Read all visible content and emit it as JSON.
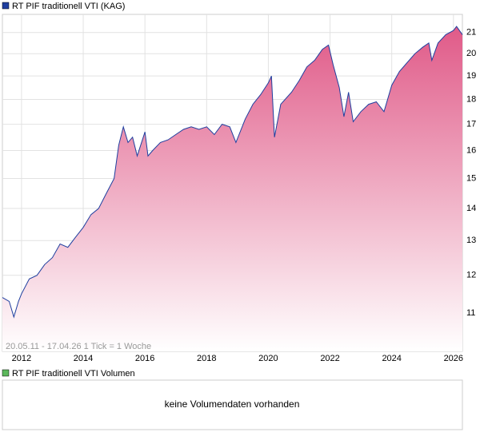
{
  "chart_data": {
    "type": "line",
    "legend": "RT PIF traditionell VTI (KAG)",
    "series": [
      {
        "name": "RT PIF traditionell VTI (KAG)",
        "color": "#1f3f9f",
        "fill": "#e05a88",
        "values": [
          11.4,
          11.3,
          10.9,
          11.3,
          11.5,
          11.9,
          12.0,
          12.3,
          12.5,
          12.9,
          12.8,
          13.1,
          13.4,
          13.8,
          14.0,
          14.5,
          15.0,
          16.2,
          16.9,
          16.3,
          16.5,
          15.8,
          16.7,
          15.8,
          16.0,
          16.3,
          16.4,
          16.6,
          16.8,
          16.9,
          16.8,
          16.9,
          16.6,
          17.0,
          16.9,
          16.3,
          17.2,
          17.8,
          18.2,
          18.7,
          19.0,
          16.5,
          17.8,
          18.3,
          18.8,
          19.4,
          19.7,
          20.2,
          20.4,
          19.5,
          18.5,
          17.3,
          18.3,
          17.1,
          17.5,
          17.8,
          17.9,
          17.5,
          18.6,
          19.2,
          19.6,
          20.0,
          20.3,
          20.5,
          19.7,
          20.5,
          20.9,
          21.1,
          21.3,
          20.9
        ]
      }
    ],
    "x": [
      2011.38,
      2011.6,
      2011.75,
      2011.9,
      2012.0,
      2012.25,
      2012.5,
      2012.75,
      2013.0,
      2013.25,
      2013.5,
      2013.75,
      2014.0,
      2014.25,
      2014.5,
      2014.75,
      2015.0,
      2015.15,
      2015.3,
      2015.45,
      2015.6,
      2015.75,
      2016.0,
      2016.1,
      2016.25,
      2016.5,
      2016.75,
      2017.0,
      2017.25,
      2017.5,
      2017.75,
      2018.0,
      2018.25,
      2018.5,
      2018.75,
      2018.95,
      2019.25,
      2019.5,
      2019.75,
      2020.0,
      2020.1,
      2020.2,
      2020.4,
      2020.75,
      2021.0,
      2021.25,
      2021.5,
      2021.75,
      2021.95,
      2022.1,
      2022.3,
      2022.45,
      2022.6,
      2022.75,
      2023.0,
      2023.25,
      2023.5,
      2023.75,
      2024.0,
      2024.25,
      2024.5,
      2024.75,
      2025.0,
      2025.2,
      2025.3,
      2025.5,
      2025.75,
      2026.0,
      2026.1,
      2026.29
    ],
    "xlim": [
      2011.38,
      2026.29
    ],
    "xticks": [
      2012,
      2014,
      2016,
      2018,
      2020,
      2022,
      2024,
      2026
    ],
    "ylim": [
      10.07,
      21.9
    ],
    "yticks": [
      11,
      12,
      13,
      14,
      15,
      16,
      17,
      18,
      19,
      20,
      21
    ],
    "log_scale": true,
    "grid": true,
    "footnote": "20.05.11 - 17.04.26   1 Tick = 1 Woche",
    "volume": {
      "legend": "RT PIF traditionell VTI Volumen",
      "legend_color": "#5cb85c",
      "message": "keine Volumendaten vorhanden"
    }
  }
}
